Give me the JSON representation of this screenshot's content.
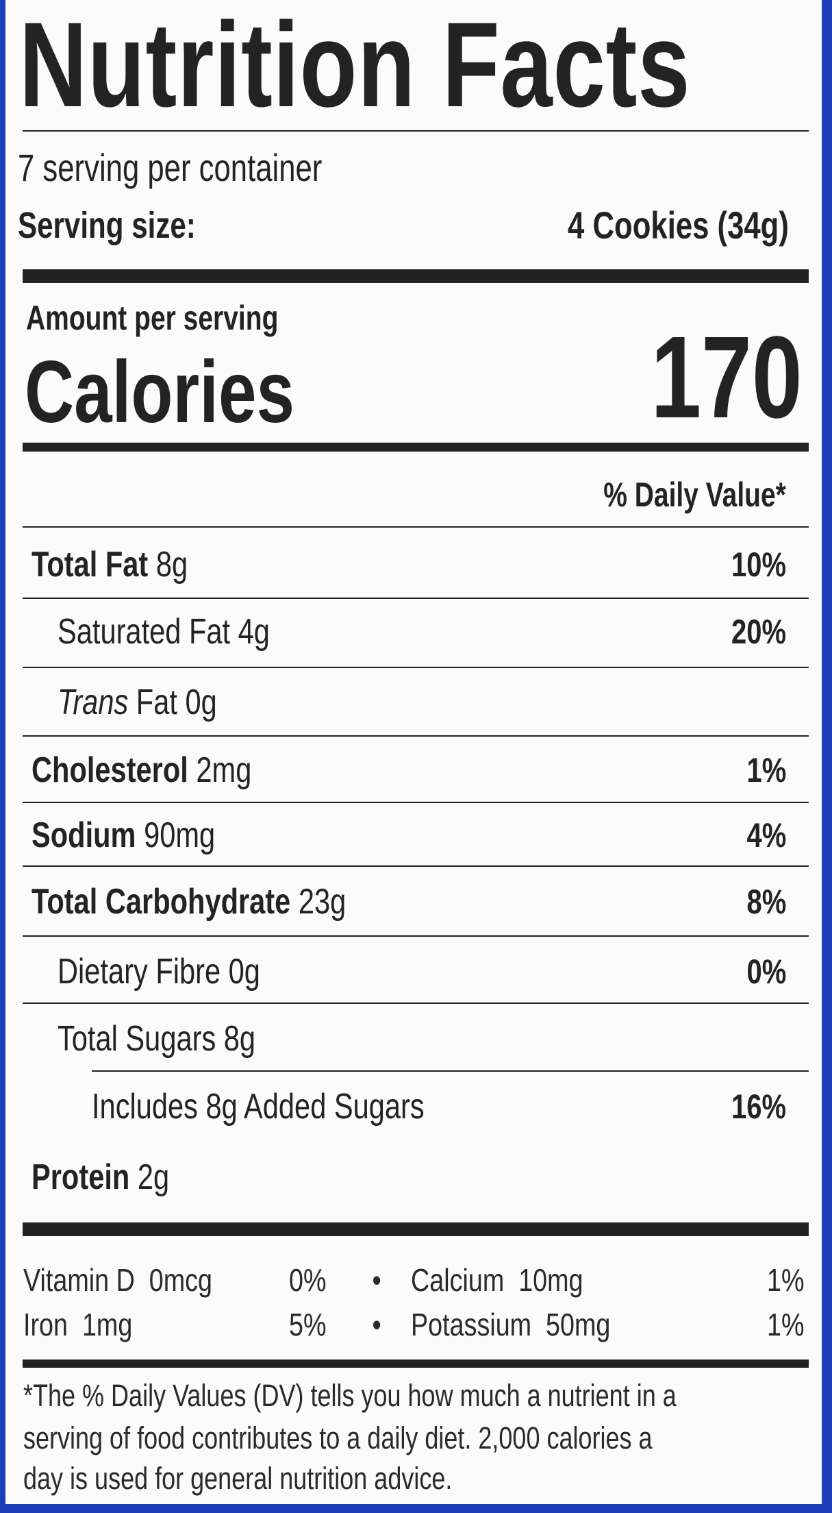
{
  "title": "Nutrition Facts",
  "servings_per_container": "7 serving per container",
  "serving_size": {
    "label": "Serving size:",
    "value": "4 Cookies (34g)"
  },
  "amount_per_serving": "Amount per serving",
  "calories": {
    "label": "Calories",
    "value": "170"
  },
  "daily_value_header": "% Daily Value*",
  "nutrients": [
    {
      "name": "Total Fat",
      "amount": "8g",
      "dv": "10%"
    },
    {
      "name": "Saturated Fat",
      "amount": "4g",
      "dv": "20%"
    },
    {
      "name": "Trans",
      "name_suffix": " Fat",
      "amount": "0g",
      "dv": ""
    },
    {
      "name": "Cholesterol",
      "amount": "2mg",
      "dv": "1%"
    },
    {
      "name": "Sodium",
      "amount": "90mg",
      "dv": "4%"
    },
    {
      "name": "Total Carbohydrate",
      "amount": "23g",
      "dv": "8%"
    },
    {
      "name": "Dietary Fibre",
      "amount": "0g",
      "dv": "0%"
    },
    {
      "name": "Total Sugars",
      "amount": "8g",
      "dv": ""
    },
    {
      "name": "Includes 8g Added Sugars",
      "amount": "",
      "dv": "16%"
    },
    {
      "name": "Protein",
      "amount": "2g",
      "dv": ""
    }
  ],
  "vitamins": [
    {
      "name": "Vitamin D",
      "amount": "0mcg",
      "dv": "0%"
    },
    {
      "name": "Calcium",
      "amount": "10mg",
      "dv": "1%"
    },
    {
      "name": "Iron",
      "amount": "1mg",
      "dv": "5%"
    },
    {
      "name": "Potassium",
      "amount": "50mg",
      "dv": "1%"
    }
  ],
  "bullet": "•",
  "footnote": [
    "*The % Daily Values (DV) tells you how much a nutrient in a",
    "serving of food contributes to a daily diet. 2,000 calories a",
    "day is used for general nutrition advice."
  ],
  "colors": {
    "border": "#1d3fb8",
    "ink": "#232323",
    "background": "#fbfbfb"
  }
}
